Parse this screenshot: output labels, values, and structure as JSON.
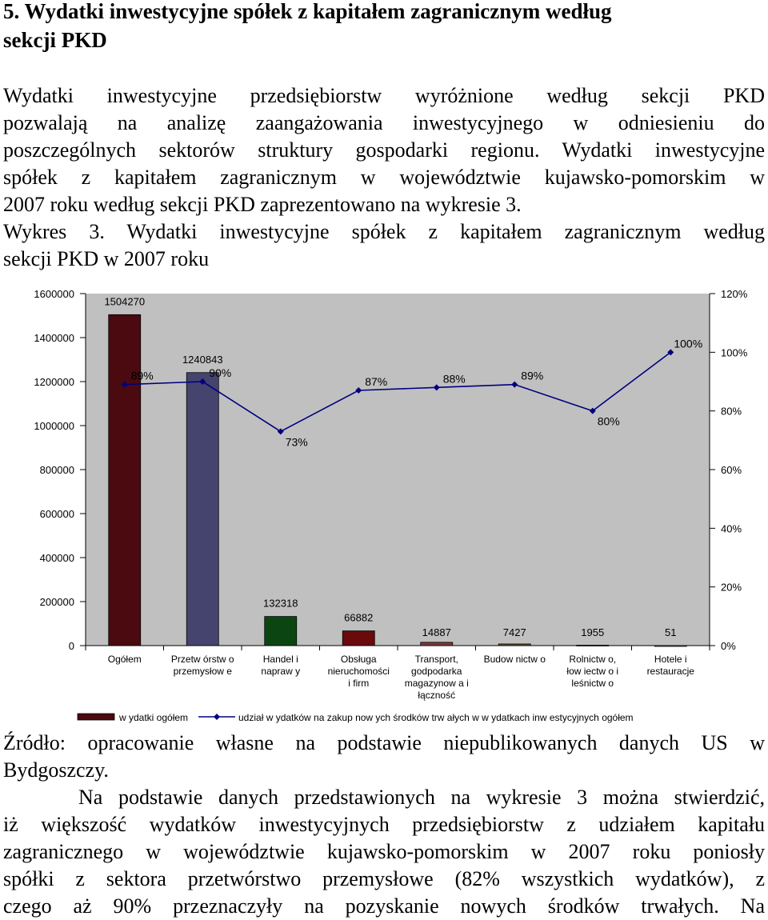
{
  "heading": {
    "number": "5.",
    "lines": [
      "Wydatki inwestycyjne spółek z kapitałem zagranicznym według",
      "sekcji PKD"
    ]
  },
  "paragraph1": {
    "lines": [
      "Wydatki inwestycyjne przedsiębiorstw wyróżnione według sekcji PKD",
      "pozwalają na analizę zaangażowania inwestycyjnego w odniesieniu do",
      "poszczególnych sektorów struktury gospodarki regionu. Wydatki inwestycyjne",
      "spółek z kapitałem zagranicznym w województwie kujawsko-pomorskim w",
      "2007 roku według sekcji PKD zaprezentowano na wykresie 3."
    ]
  },
  "caption": {
    "lines": [
      "Wykres 3. Wydatki inwestycyjne spółek z kapitałem zagranicznym według",
      "sekcji PKD w 2007 roku"
    ]
  },
  "chart_data": {
    "type": "bar",
    "categories": [
      [
        "Ogółem"
      ],
      [
        "Przetw órstw o",
        "przemysłow e"
      ],
      [
        "Handel i",
        "napraw y"
      ],
      [
        "Obsługa",
        "nieruchomości",
        "i firm"
      ],
      [
        "Transport,",
        "godpodarka",
        "magazynow a i",
        "łączność"
      ],
      [
        "Budow nictw o"
      ],
      [
        "Rolnictw o,",
        "łow iectw o i",
        "leśnictw o"
      ],
      [
        "Hotele i",
        "restauracje"
      ]
    ],
    "series": [
      {
        "name": "w ydatki ogółem",
        "type": "bar",
        "axis": "left",
        "values": [
          1504270,
          1240843,
          132318,
          66882,
          14887,
          7427,
          1955,
          51
        ],
        "labels": [
          "1504270",
          "1240843",
          "132318",
          "66882",
          "14887",
          "7427",
          "1955",
          "51"
        ],
        "colors": [
          "#4a0a10",
          "#44446e",
          "#0b4612",
          "#6a0a0c",
          "#7a3a3a",
          "#605030",
          "#505050",
          "#808080"
        ]
      },
      {
        "name": "udział w ydatków na zakup now ych środków trw ałych w w ydatkach inw estycyjnych ogółem",
        "type": "line",
        "axis": "right",
        "values": [
          89,
          90,
          73,
          87,
          88,
          89,
          80,
          100
        ],
        "labels": [
          "89%",
          "90%",
          "73%",
          "87%",
          "88%",
          "89%",
          "80%",
          "100%"
        ],
        "color": "#000080"
      }
    ],
    "yleft": {
      "ylim": [
        0,
        1600000
      ],
      "ticks": [
        "0",
        "200000",
        "400000",
        "600000",
        "800000",
        "1000000",
        "1200000",
        "1400000",
        "1600000"
      ]
    },
    "yright": {
      "ylim": [
        0,
        120
      ],
      "ticks": [
        "0%",
        "20%",
        "40%",
        "60%",
        "80%",
        "100%",
        "120%"
      ]
    },
    "grid": false,
    "plot_background": "#c0c0c0",
    "legend_position": "bottom"
  },
  "source": {
    "lines": [
      "Źródło: opracowanie własne na podstawie niepublikowanych danych US w",
      "Bydgoszczy."
    ]
  },
  "paragraph2": {
    "lines": [
      "Na podstawie danych przedstawionych na wykresie 3 można stwierdzić,",
      "iż większość wydatków inwestycyjnych przedsiębiorstw z udziałem kapitału",
      "zagranicznego w województwie kujawsko-pomorskim w 2007 roku poniosły",
      "spółki z sektora przetwórstwo przemysłowe (82% wszystkich wydatków), z",
      "czego aż  90% przeznaczyły na pozyskanie nowych środków trwałych. Na"
    ]
  }
}
